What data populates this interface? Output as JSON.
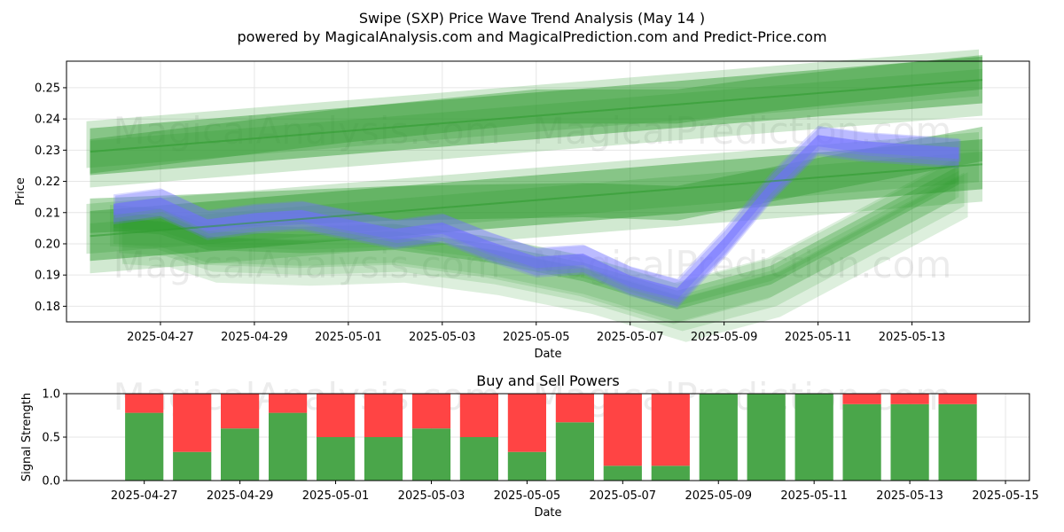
{
  "title": "Swipe (SXP) Price Wave Trend Analysis (May 14 )",
  "subtitle": "powered by MagicalAnalysis.com and MagicalPrediction.com and Predict-Price.com",
  "watermarks": [
    "MagicalAnalysis.com",
    "MagicalPrediction.com"
  ],
  "colors": {
    "green": "#2e9a2e",
    "blue": "#6f6fff",
    "buy": "#4aa64a",
    "sell": "#ff4444",
    "grid": "#e6e6e6"
  },
  "chart_data": [
    {
      "type": "area",
      "name": "price-panel",
      "title": "",
      "xlabel": "Date",
      "ylabel": "Price",
      "xlim": [
        "2025-04-25T00:00",
        "2025-05-15T12:00"
      ],
      "ylim": [
        0.175,
        0.2585
      ],
      "grid": true,
      "x_ticks": [
        "2025-04-27",
        "2025-04-29",
        "2025-05-01",
        "2025-05-03",
        "2025-05-05",
        "2025-05-07",
        "2025-05-09",
        "2025-05-11",
        "2025-05-13"
      ],
      "y_ticks": [
        0.18,
        0.19,
        0.2,
        0.21,
        0.22,
        0.23,
        0.24,
        0.25
      ],
      "series": [
        {
          "name": "price-wave",
          "color": "blue",
          "x": [
            "2025-04-26",
            "2025-04-27",
            "2025-04-28",
            "2025-04-29",
            "2025-04-30",
            "2025-05-01",
            "2025-05-02",
            "2025-05-03",
            "2025-05-04",
            "2025-05-05",
            "2025-05-06",
            "2025-05-07",
            "2025-05-08",
            "2025-05-09",
            "2025-05-10",
            "2025-05-11",
            "2025-05-12",
            "2025-05-13",
            "2025-05-14"
          ],
          "values": [
            0.211,
            0.213,
            0.206,
            0.208,
            0.209,
            0.206,
            0.203,
            0.205,
            0.199,
            0.194,
            0.195,
            0.188,
            0.184,
            0.2,
            0.218,
            0.233,
            0.231,
            0.23,
            0.229
          ],
          "band": 0.003
        },
        {
          "name": "trend-upper-band",
          "color": "green",
          "x": [
            "2025-04-25T12:00",
            "2025-05-14T12:00"
          ],
          "values": [
            0.2295,
            0.2525
          ],
          "band": 0.0075
        },
        {
          "name": "trend-lower-band",
          "color": "green",
          "x": [
            "2025-04-25T12:00",
            "2025-05-14T12:00"
          ],
          "values": [
            0.2025,
            0.2255
          ],
          "band": 0.008
        },
        {
          "name": "trend-upper-wide",
          "color": "green",
          "x": [
            "2025-04-25T12:00",
            "2025-05-01",
            "2025-05-05",
            "2025-05-08",
            "2025-05-10",
            "2025-05-14T12:00"
          ],
          "values": [
            0.228,
            0.238,
            0.244,
            0.244,
            0.248,
            0.255
          ],
          "band": 0.0055
        },
        {
          "name": "trend-mid-wide",
          "color": "green",
          "x": [
            "2025-04-25T12:00",
            "2025-05-02",
            "2025-05-06",
            "2025-05-08",
            "2025-05-11",
            "2025-05-14T12:00"
          ],
          "values": [
            0.209,
            0.213,
            0.214,
            0.213,
            0.222,
            0.232
          ],
          "band": 0.0055
        },
        {
          "name": "wave-projection",
          "color": "green",
          "x": [
            "2025-04-26",
            "2025-04-27",
            "2025-04-28",
            "2025-04-30",
            "2025-05-02",
            "2025-05-04",
            "2025-05-06",
            "2025-05-08",
            "2025-05-10",
            "2025-05-12",
            "2025-05-14"
          ],
          "values": [
            0.207,
            0.206,
            0.201,
            0.2,
            0.201,
            0.197,
            0.191,
            0.182,
            0.19,
            0.206,
            0.222
          ],
          "band": 0.003
        }
      ]
    },
    {
      "type": "bar",
      "name": "signal-panel",
      "title": "Buy and Sell Powers",
      "xlabel": "Date",
      "ylabel": "Signal Strength",
      "xlim": [
        "2025-04-25T09:00",
        "2025-05-15T12:00"
      ],
      "ylim": [
        0,
        1
      ],
      "grid": true,
      "x_ticks": [
        "2025-04-27",
        "2025-04-29",
        "2025-05-01",
        "2025-05-03",
        "2025-05-05",
        "2025-05-07",
        "2025-05-09",
        "2025-05-11",
        "2025-05-13",
        "2025-05-15"
      ],
      "y_ticks": [
        "0.0",
        "0.5",
        "1.0"
      ],
      "categories": [
        "2025-04-27",
        "2025-04-28",
        "2025-04-29",
        "2025-04-30",
        "2025-05-01",
        "2025-05-02",
        "2025-05-03",
        "2025-05-04",
        "2025-05-05",
        "2025-05-06",
        "2025-05-07",
        "2025-05-08",
        "2025-05-09",
        "2025-05-10",
        "2025-05-11",
        "2025-05-12",
        "2025-05-13",
        "2025-05-14"
      ],
      "series": [
        {
          "name": "Buy",
          "color": "buy",
          "values": [
            0.78,
            0.33,
            0.6,
            0.78,
            0.5,
            0.5,
            0.6,
            0.5,
            0.33,
            0.67,
            0.17,
            0.17,
            1.0,
            1.0,
            1.0,
            0.88,
            0.88,
            0.88
          ]
        },
        {
          "name": "Sell",
          "color": "sell",
          "values": [
            0.22,
            0.67,
            0.4,
            0.22,
            0.5,
            0.5,
            0.4,
            0.5,
            0.67,
            0.33,
            0.83,
            0.83,
            0.0,
            0.0,
            0.0,
            0.12,
            0.12,
            0.12
          ]
        }
      ]
    }
  ]
}
